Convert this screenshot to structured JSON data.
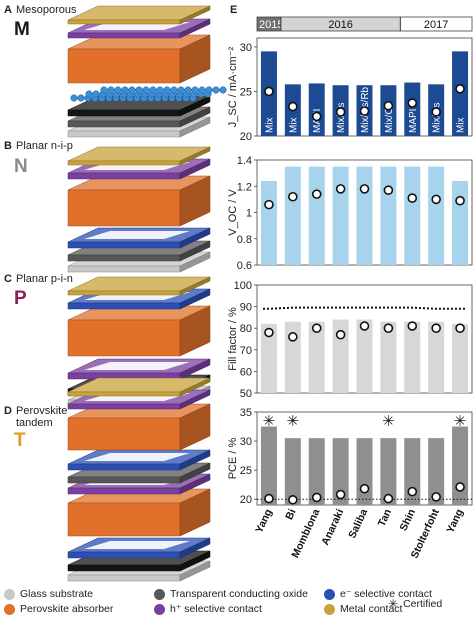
{
  "panels": {
    "A": {
      "letter": "A",
      "title": "Mesoporous",
      "code": "M"
    },
    "B": {
      "letter": "B",
      "title": "Planar n-i-p",
      "code": "N"
    },
    "C": {
      "letter": "C",
      "title": "Planar p-i-n",
      "code": "P"
    },
    "D": {
      "letter": "D",
      "title": "Perovskite tandem",
      "code": "T"
    },
    "E": {
      "letter": "E"
    }
  },
  "colors": {
    "glass": "#c8c8c8",
    "tco": "#575757",
    "e_selective": "#2b4fb5",
    "perovskite": "#e0702a",
    "h_selective": "#7a3fa0",
    "metal": "#c8a23a",
    "jsc_bar": "#1d4b93",
    "voc_bar": "#a8d3ec",
    "ff_bar": "#d7d7d7",
    "pce_bar": "#8f8f8f",
    "code_M": "#1a1a1a",
    "code_N": "#8a8a8a",
    "code_P": "#8c1d5a",
    "code_T": "#e69a1f"
  },
  "legend": {
    "glass": "Glass substrate",
    "tco": "Transparent conducting oxide",
    "e_selective": "e⁻ selective contact",
    "perovskite": "Perovskite absorber",
    "h_selective": "h⁺ selective contact",
    "metal": "Metal contact",
    "certified": "Certified",
    "certified_symbol": "✳"
  },
  "chart_data": [
    {
      "type": "bar",
      "panel": "Jsc",
      "years": [
        {
          "label": "2015",
          "count": 1
        },
        {
          "label": "2016",
          "count": 5
        },
        {
          "label": "2017",
          "count": 3
        }
      ],
      "architectures": [
        "M",
        "M",
        "N",
        "N",
        "M",
        "N",
        "M",
        "P",
        "M"
      ],
      "categories": [
        "Yang",
        "Bi",
        "Momblona",
        "Anaraki",
        "Saliba",
        "Tan",
        "Shin",
        "Stolterfoht",
        "Yang"
      ],
      "bar_labels": [
        "Mix",
        "Mix",
        "MAPI",
        "Mix/Cs",
        "Mix/Cs/Rb",
        "Mix/Cs",
        "MAPI",
        "Mix/Cs",
        "Mix"
      ],
      "values": [
        29.5,
        25.8,
        25.9,
        25.7,
        25.7,
        25.7,
        26.0,
        25.8,
        29.5
      ],
      "points": [
        25.0,
        23.3,
        22.2,
        22.7,
        22.8,
        23.4,
        23.7,
        22.7,
        25.3
      ],
      "ylabel": "J_SC / mA·cm⁻²",
      "ylim": [
        20,
        31
      ],
      "yticks": [
        20,
        25,
        30
      ]
    },
    {
      "type": "bar",
      "panel": "Voc",
      "categories": [
        "Yang",
        "Bi",
        "Momblona",
        "Anaraki",
        "Saliba",
        "Tan",
        "Shin",
        "Stolterfoht",
        "Yang"
      ],
      "values": [
        1.24,
        1.35,
        1.35,
        1.35,
        1.35,
        1.35,
        1.35,
        1.35,
        1.24
      ],
      "points": [
        1.06,
        1.12,
        1.14,
        1.18,
        1.18,
        1.17,
        1.11,
        1.1,
        1.09
      ],
      "ylabel": "V_OC / V",
      "ylim": [
        0.6,
        1.4
      ],
      "yticks": [
        0.6,
        0.8,
        1.0,
        1.2,
        1.4
      ]
    },
    {
      "type": "bar",
      "panel": "FF",
      "categories": [
        "Yang",
        "Bi",
        "Momblona",
        "Anaraki",
        "Saliba",
        "Tan",
        "Shin",
        "Stolterfoht",
        "Yang"
      ],
      "values": [
        82,
        83,
        83,
        84,
        84,
        83,
        83,
        83,
        82
      ],
      "points": [
        78,
        76,
        80,
        77,
        81,
        80,
        81,
        80,
        80
      ],
      "limit_line": [
        89,
        89.5,
        89.5,
        89.5,
        89.5,
        89.5,
        89.5,
        89,
        89
      ],
      "ylabel": "Fill factor / %",
      "ylim": [
        50,
        100
      ],
      "yticks": [
        50,
        60,
        70,
        80,
        90,
        100
      ]
    },
    {
      "type": "bar",
      "panel": "PCE",
      "categories": [
        "Yang",
        "Bi",
        "Momblona",
        "Anaraki",
        "Saliba",
        "Tan",
        "Shin",
        "Stolterfoht",
        "Yang"
      ],
      "values": [
        32.5,
        30.5,
        30.5,
        30.5,
        30.5,
        30.5,
        30.5,
        30.5,
        32.5
      ],
      "points": [
        20.1,
        19.9,
        20.3,
        20.8,
        21.8,
        20.1,
        21.3,
        20.4,
        22.1
      ],
      "certified": [
        true,
        true,
        false,
        false,
        false,
        true,
        false,
        false,
        true
      ],
      "reference_line": 20,
      "ylabel": "PCE / %",
      "ylim": [
        19,
        35
      ],
      "yticks": [
        20,
        25,
        30,
        35
      ]
    }
  ]
}
